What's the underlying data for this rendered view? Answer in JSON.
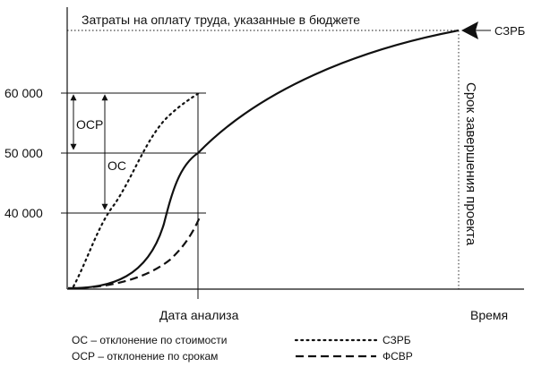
{
  "budget_label": "Затраты на оплату труда, указанные в бюджете",
  "eac_arrow_label": "СЗРБ",
  "completion_label": "Срок завершения проекта",
  "y_ticks": [
    "60 000",
    "50 000",
    "40 000"
  ],
  "ocr_label": "ОСР",
  "oc_label": "ОС",
  "analysis_date_label": "Дата анализа",
  "time_label": "Время",
  "legend": {
    "oc": "ОС – отклонение по стоимости",
    "ocr": "ОСР – отклонение по срокам",
    "szrb": "СЗРБ",
    "fsvr": "ФСВР"
  }
}
